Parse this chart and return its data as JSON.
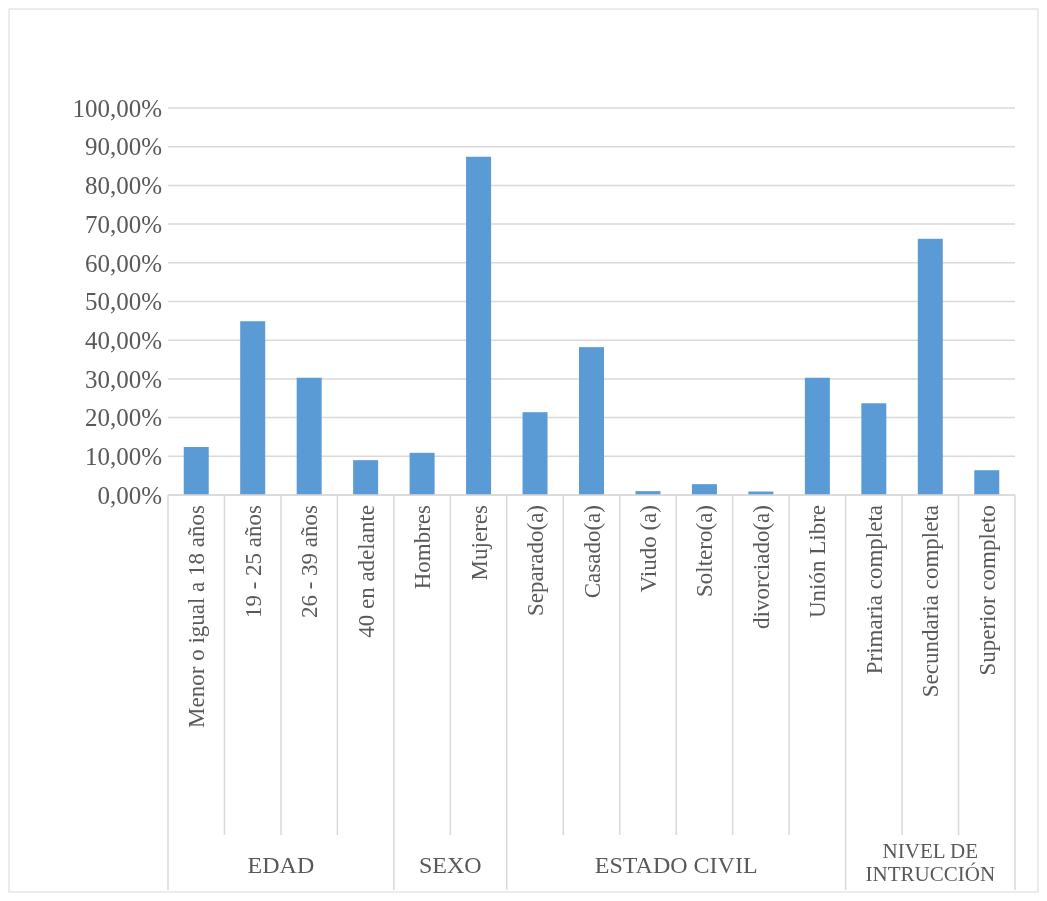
{
  "chart_data": {
    "type": "bar",
    "categories": [
      "Menor o igual a 18 años",
      "19 - 25 años",
      "26 - 39 años",
      "40 en adelante",
      "Hombres",
      "Mujeres",
      "Separado(a)",
      "Casado(a)",
      "Viudo (a)",
      "Soltero(a)",
      "divorciado(a)",
      "Unión Libre",
      "Primaria completa",
      "Secundaria completa",
      "Superior completo"
    ],
    "values": [
      12.4,
      44.9,
      30.3,
      9.0,
      10.9,
      87.4,
      21.4,
      38.2,
      1.0,
      2.8,
      0.9,
      30.3,
      23.7,
      66.2,
      6.4
    ],
    "color": "#5b9bd5",
    "ylim": [
      0,
      100
    ],
    "yticks": [
      {
        "value": 0,
        "label": "0,00%"
      },
      {
        "value": 10,
        "label": "10,00%"
      },
      {
        "value": 20,
        "label": "20,00%"
      },
      {
        "value": 30,
        "label": "30,00%"
      },
      {
        "value": 40,
        "label": "40,00%"
      },
      {
        "value": 50,
        "label": "50,00%"
      },
      {
        "value": 60,
        "label": "60,00%"
      },
      {
        "value": 70,
        "label": "70,00%"
      },
      {
        "value": 80,
        "label": "80,00%"
      },
      {
        "value": 90,
        "label": "90,00%"
      },
      {
        "value": 100,
        "label": "100,00%"
      }
    ],
    "grid": "y",
    "annotations": [
      "EDAD",
      "SEXO",
      "ESTADO CIVIL",
      "NIVEL DE INTRUCCIÓN"
    ]
  }
}
